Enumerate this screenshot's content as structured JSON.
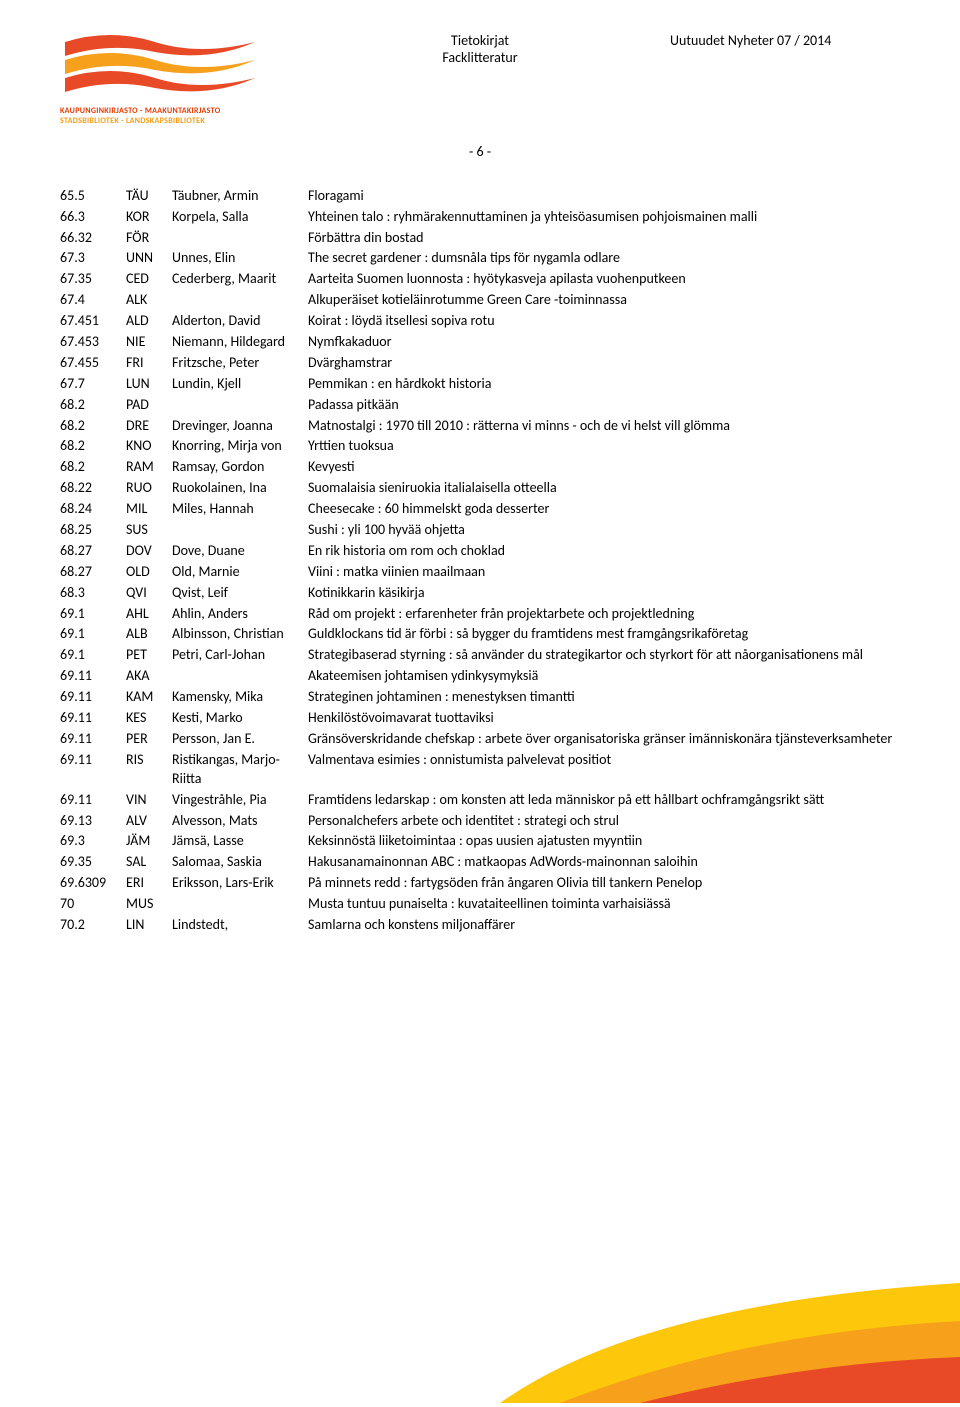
{
  "header": {
    "center_line1": "Tietokirjat",
    "center_line2": "Facklitteratur",
    "right": "Uutuudet Nyheter 07 / 2014",
    "page_num": "- 6 -",
    "logo_line1": "KAUPUNGINKIRJASTO - MAAKUNTAKIRJASTO",
    "logo_line2": "STADSBIBLIOTEK - LANDSKAPSBIBLIOTEK"
  },
  "colors": {
    "wave_red": "#e84a27",
    "wave_orange": "#f7a01b",
    "wave_yellow": "#fdc70c"
  },
  "rows": [
    {
      "a": "65.5",
      "b": "TÄU",
      "c": "Täubner, Armin",
      "d": "Floragami"
    },
    {
      "a": "66.3",
      "b": "KOR",
      "c": "Korpela, Salla",
      "d": "Yhteinen talo : ryhmärakennuttaminen ja yhteisöasumisen pohjoismainen malli"
    },
    {
      "a": "66.32",
      "b": "FÖR",
      "c": "",
      "d": "Förbättra din bostad"
    },
    {
      "a": "67.3",
      "b": "UNN",
      "c": "Unnes, Elin",
      "d": "The secret gardener : dumsnåla tips för nygamla odlare"
    },
    {
      "a": "67.35",
      "b": "CED",
      "c": "Cederberg, Maarit",
      "d": "Aarteita Suomen luonnosta : hyötykasveja apilasta vuohenputkeen"
    },
    {
      "a": "67.4",
      "b": "ALK",
      "c": "",
      "d": "Alkuperäiset kotieläinrotumme Green Care -toiminnassa"
    },
    {
      "a": "67.451",
      "b": "ALD",
      "c": "Alderton, David",
      "d": "Koirat : löydä itsellesi sopiva rotu"
    },
    {
      "a": "67.453",
      "b": "NIE",
      "c": "Niemann, Hildegard",
      "d": "Nymfkakaduor"
    },
    {
      "a": "67.455",
      "b": "FRI",
      "c": "Fritzsche, Peter",
      "d": "Dvärghamstrar"
    },
    {
      "a": "67.7",
      "b": "LUN",
      "c": "Lundin, Kjell",
      "d": "Pemmikan : en hårdkokt historia"
    },
    {
      "a": "68.2",
      "b": "PAD",
      "c": "",
      "d": "Padassa pitkään"
    },
    {
      "a": "68.2",
      "b": "DRE",
      "c": "Drevinger, Joanna",
      "d": "Matnostalgi : 1970 till 2010 : rätterna vi minns - och de vi helst vill glömma"
    },
    {
      "a": "68.2",
      "b": "KNO",
      "c": "Knorring, Mirja von",
      "d": "Yrttien tuoksua"
    },
    {
      "a": "68.2",
      "b": "RAM",
      "c": "Ramsay, Gordon",
      "d": "Kevyesti"
    },
    {
      "a": "68.22",
      "b": "RUO",
      "c": "Ruokolainen, Ina",
      "d": "Suomalaisia sieniruokia italialaisella otteella"
    },
    {
      "a": "68.24",
      "b": "MIL",
      "c": "Miles, Hannah",
      "d": "Cheesecake : 60 himmelskt goda desserter"
    },
    {
      "a": "68.25",
      "b": "SUS",
      "c": "",
      "d": "Sushi : yli 100 hyvää ohjetta"
    },
    {
      "a": "68.27",
      "b": "DOV",
      "c": "Dove, Duane",
      "d": "En rik historia om rom och choklad"
    },
    {
      "a": "68.27",
      "b": "OLD",
      "c": "Old, Marnie",
      "d": "Viini : matka viinien maailmaan"
    },
    {
      "a": "68.3",
      "b": "QVI",
      "c": "Qvist, Leif",
      "d": "Kotinikkarin käsikirja"
    },
    {
      "a": "69.1",
      "b": "AHL",
      "c": "Ahlin, Anders",
      "d": "Råd om projekt : erfarenheter från projektarbete och projektledning"
    },
    {
      "a": "69.1",
      "b": "ALB",
      "c": "Albinsson, Christian",
      "d": "Guldklockans tid är förbi : så bygger du framtidens mest framgångsrikaföretag"
    },
    {
      "a": "69.1",
      "b": "PET",
      "c": "Petri, Carl-Johan",
      "d": "Strategibaserad styrning : så använder du strategikartor och styrkort för att nåorganisationens mål"
    },
    {
      "a": "69.11",
      "b": "AKA",
      "c": "",
      "d": "Akateemisen johtamisen ydinkysymyksiä"
    },
    {
      "a": "69.11",
      "b": "KAM",
      "c": "Kamensky, Mika",
      "d": "Strateginen johtaminen : menestyksen timantti"
    },
    {
      "a": "69.11",
      "b": "KES",
      "c": "Kesti, Marko",
      "d": "Henkilöstövoimavarat tuottaviksi"
    },
    {
      "a": "69.11",
      "b": "PER",
      "c": "Persson, Jan E.",
      "d": "Gränsöverskridande chefskap : arbete över organisatoriska gränser imänniskonära tjänsteverksamheter"
    },
    {
      "a": "69.11",
      "b": "RIS",
      "c": "Ristikangas, Marjo-Riitta",
      "d": "Valmentava esimies : onnistumista palvelevat positiot"
    },
    {
      "a": "69.11",
      "b": "VIN",
      "c": "Vingestråhle, Pia",
      "d": "Framtidens ledarskap : om konsten att leda människor på ett hållbart ochframgångsrikt sätt"
    },
    {
      "a": "69.13",
      "b": "ALV",
      "c": "Alvesson, Mats",
      "d": "Personalchefers arbete och identitet : strategi och strul"
    },
    {
      "a": "69.3",
      "b": "JÄM",
      "c": "Jämsä, Lasse",
      "d": "Keksinnöstä liiketoimintaa : opas uusien ajatusten myyntiin"
    },
    {
      "a": "69.35",
      "b": "SAL",
      "c": "Salomaa, Saskia",
      "d": "Hakusanamainonnan ABC : matkaopas AdWords-mainonnan saloihin"
    },
    {
      "a": "69.6309",
      "b": "ERI",
      "c": "Eriksson, Lars-Erik",
      "d": "På minnets redd : fartygsöden från ångaren Olivia till tankern Penelop"
    },
    {
      "a": "70",
      "b": "MUS",
      "c": "",
      "d": "Musta tuntuu punaiselta : kuvataiteellinen toiminta varhaisiässä"
    },
    {
      "a": "70.2",
      "b": "LIN",
      "c": "Lindstedt,",
      "d": "Samlarna och konstens miljonaffärer"
    }
  ]
}
